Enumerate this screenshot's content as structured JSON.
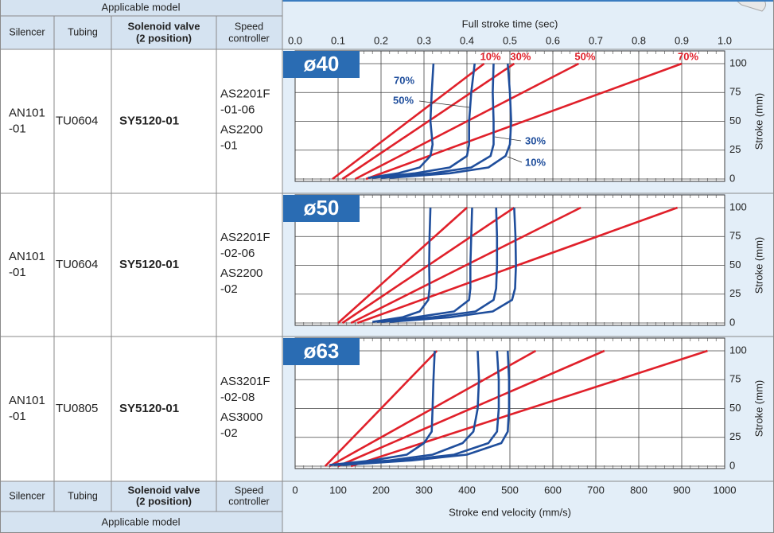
{
  "table": {
    "header": {
      "group": "Applicable model",
      "columns": [
        [
          "Silencer"
        ],
        [
          "Tubing"
        ],
        [
          "Solenoid valve",
          "(2 position)"
        ],
        [
          "Speed",
          "controller"
        ]
      ]
    },
    "rows": [
      {
        "silencer": [
          "AN101",
          "-01"
        ],
        "tubing": "TU0604",
        "solenoid_valve": "SY5120-01",
        "speed_controller": [
          "AS2201F",
          "-01-06",
          "AS2200",
          "-01"
        ]
      },
      {
        "silencer": [
          "AN101",
          "-01"
        ],
        "tubing": "TU0604",
        "solenoid_valve": "SY5120-01",
        "speed_controller": [
          "AS2201F",
          "-02-06",
          "AS2200",
          "-02"
        ]
      },
      {
        "silencer": [
          "AN101",
          "-01"
        ],
        "tubing": "TU0805",
        "solenoid_valve": "SY5120-01",
        "speed_controller": [
          "AS3201F",
          "-02-08",
          "AS3000",
          "-02"
        ]
      }
    ],
    "footer": {
      "columns": [
        [
          "Silencer"
        ],
        [
          "Tubing"
        ],
        [
          "Solenoid valve",
          "(2 position)"
        ],
        [
          "Speed",
          "controller"
        ]
      ],
      "group": "Applicable model"
    }
  },
  "axes": {
    "time": {
      "label": "Full stroke time (sec)",
      "lim": [
        0,
        1
      ],
      "ticks": [
        {
          "value": 0,
          "label": "0.0"
        },
        0.1,
        0.2,
        0.3,
        0.4,
        0.5,
        0.6,
        0.7,
        0.8,
        0.9,
        {
          "value": 1,
          "label": "1.0"
        }
      ]
    },
    "velocity": {
      "label": "Stroke end velocity (mm/s)",
      "lim": [
        0,
        1000
      ],
      "ticks": [
        0,
        100,
        200,
        300,
        400,
        500,
        600,
        700,
        800,
        900,
        1000
      ]
    }
  },
  "chart_data": [
    {
      "type": "line",
      "title": "ø40",
      "y_label": "Stroke (mm)",
      "ylim": [
        0,
        100
      ],
      "yticks": [
        0,
        25,
        50,
        75,
        100
      ],
      "grid": true,
      "series": [
        {
          "name": "10%",
          "color": "#e0202a",
          "x_axis": "time",
          "x": [
            0.087,
            0.44
          ],
          "values": [
            0,
            100
          ]
        },
        {
          "name": "30%",
          "color": "#e0202a",
          "x_axis": "time",
          "x": [
            0.11,
            0.51
          ],
          "values": [
            0,
            100
          ]
        },
        {
          "name": "50%",
          "color": "#e0202a",
          "x_axis": "time",
          "x": [
            0.14,
            0.66
          ],
          "values": [
            0,
            100
          ]
        },
        {
          "name": "70%",
          "color": "#e0202a",
          "x_axis": "time",
          "x": [
            0.165,
            0.9
          ],
          "values": [
            0,
            100
          ]
        },
        {
          "name": "70%",
          "color": "#1f4e9c",
          "x_axis": "velocity",
          "x": [
            170,
            240,
            290,
            315,
            320,
            315,
            318,
            322
          ],
          "values": [
            1,
            5,
            10,
            20,
            30,
            50,
            75,
            100
          ]
        },
        {
          "name": "50%",
          "color": "#1f4e9c",
          "x_axis": "velocity",
          "x": [
            180,
            280,
            360,
            400,
            405,
            405,
            410,
            418
          ],
          "values": [
            1,
            5,
            10,
            20,
            30,
            50,
            75,
            100
          ]
        },
        {
          "name": "30%",
          "color": "#1f4e9c",
          "x_axis": "velocity",
          "x": [
            200,
            320,
            410,
            455,
            462,
            462,
            460,
            462
          ],
          "values": [
            1,
            5,
            10,
            20,
            30,
            50,
            75,
            100
          ]
        },
        {
          "name": "10%",
          "color": "#1f4e9c",
          "x_axis": "velocity",
          "x": [
            220,
            360,
            450,
            490,
            500,
            503,
            500,
            495
          ],
          "values": [
            1,
            5,
            10,
            20,
            30,
            50,
            75,
            100
          ]
        }
      ]
    },
    {
      "type": "line",
      "title": "ø50",
      "y_label": "Stroke (mm)",
      "ylim": [
        0,
        100
      ],
      "yticks": [
        0,
        25,
        50,
        75,
        100
      ],
      "grid": true,
      "series": [
        {
          "color": "#e0202a",
          "x_axis": "time",
          "x": [
            0.1,
            0.4
          ],
          "values": [
            0,
            100
          ]
        },
        {
          "color": "#e0202a",
          "x_axis": "time",
          "x": [
            0.11,
            0.51
          ],
          "values": [
            0,
            100
          ]
        },
        {
          "color": "#e0202a",
          "x_axis": "time",
          "x": [
            0.13,
            0.665
          ],
          "values": [
            0,
            100
          ]
        },
        {
          "color": "#e0202a",
          "x_axis": "time",
          "x": [
            0.145,
            0.89
          ],
          "values": [
            0,
            100
          ]
        },
        {
          "color": "#1f4e9c",
          "x_axis": "velocity",
          "x": [
            180,
            250,
            290,
            310,
            313,
            312,
            313,
            315
          ],
          "values": [
            1,
            5,
            10,
            20,
            30,
            50,
            75,
            100
          ]
        },
        {
          "color": "#1f4e9c",
          "x_axis": "velocity",
          "x": [
            190,
            280,
            370,
            405,
            408,
            408,
            410,
            412
          ],
          "values": [
            1,
            5,
            10,
            20,
            30,
            50,
            75,
            100
          ]
        },
        {
          "color": "#1f4e9c",
          "x_axis": "velocity",
          "x": [
            200,
            320,
            420,
            462,
            468,
            470,
            470,
            468
          ],
          "values": [
            1,
            5,
            10,
            20,
            30,
            50,
            75,
            100
          ]
        },
        {
          "color": "#1f4e9c",
          "x_axis": "velocity",
          "x": [
            220,
            360,
            460,
            505,
            512,
            514,
            513,
            510
          ],
          "values": [
            1,
            5,
            10,
            20,
            30,
            50,
            75,
            100
          ]
        }
      ]
    },
    {
      "type": "line",
      "title": "ø63",
      "y_label": "Stroke (mm)",
      "ylim": [
        0,
        100
      ],
      "yticks": [
        0,
        25,
        50,
        75,
        100
      ],
      "grid": true,
      "series": [
        {
          "color": "#e0202a",
          "x_axis": "time",
          "x": [
            0.07,
            0.33
          ],
          "values": [
            0,
            100
          ]
        },
        {
          "color": "#e0202a",
          "x_axis": "time",
          "x": [
            0.08,
            0.56
          ],
          "values": [
            0,
            100
          ]
        },
        {
          "color": "#e0202a",
          "x_axis": "time",
          "x": [
            0.1,
            0.72
          ],
          "values": [
            0,
            100
          ]
        },
        {
          "color": "#e0202a",
          "x_axis": "time",
          "x": [
            0.13,
            0.96
          ],
          "values": [
            0,
            100
          ]
        },
        {
          "color": "#1f4e9c",
          "x_axis": "velocity",
          "x": [
            80,
            180,
            260,
            300,
            318,
            320,
            322,
            325
          ],
          "values": [
            1,
            5,
            10,
            20,
            30,
            50,
            75,
            100
          ]
        },
        {
          "color": "#1f4e9c",
          "x_axis": "velocity",
          "x": [
            90,
            220,
            320,
            390,
            415,
            425,
            428,
            425
          ],
          "values": [
            1,
            5,
            10,
            20,
            30,
            50,
            75,
            100
          ]
        },
        {
          "color": "#1f4e9c",
          "x_axis": "velocity",
          "x": [
            100,
            250,
            370,
            450,
            470,
            474,
            474,
            470
          ],
          "values": [
            1,
            5,
            10,
            20,
            30,
            50,
            75,
            100
          ]
        },
        {
          "color": "#1f4e9c",
          "x_axis": "velocity",
          "x": [
            110,
            270,
            400,
            480,
            495,
            498,
            498,
            495
          ],
          "values": [
            1,
            5,
            10,
            20,
            30,
            50,
            75,
            100
          ]
        }
      ]
    }
  ]
}
